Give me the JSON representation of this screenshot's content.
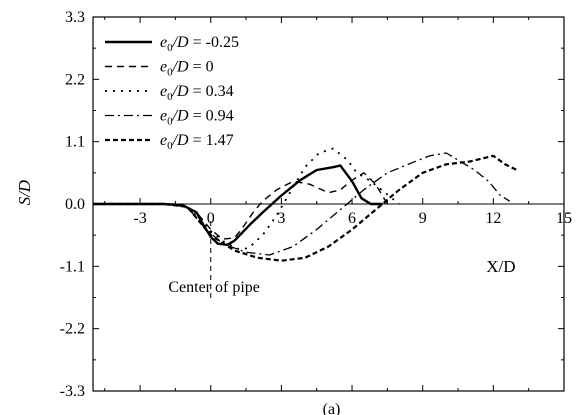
{
  "chart_data": {
    "type": "line",
    "title": "",
    "caption": "(a)",
    "xlabel": "X/D",
    "ylabel": "S/D",
    "xlim": [
      -5,
      15
    ],
    "ylim": [
      -3.3,
      3.3
    ],
    "x_ticks": [
      "-3",
      "0",
      "3",
      "6",
      "9",
      "12",
      "15"
    ],
    "x_tick_values": [
      -3,
      0,
      3,
      6,
      9,
      12,
      15
    ],
    "y_ticks": [
      "3.3",
      "2.2",
      "1.1",
      "0.0",
      "-1.1",
      "-2.2",
      "-3.3"
    ],
    "y_tick_values": [
      3.3,
      2.2,
      1.1,
      0.0,
      -1.1,
      -2.2,
      -3.3
    ],
    "legend_position": "top-left",
    "annotation": {
      "text": "Center of pipe",
      "x": 0
    },
    "series": [
      {
        "name": "e0/D = -0.25",
        "name_parts": {
          "e": "e",
          "sub": "0",
          "rest": "/D = -0.25"
        },
        "style": "solid",
        "x": [
          -5,
          -2,
          -1.2,
          -0.6,
          -0.3,
          0,
          0.3,
          0.7,
          1.0,
          1.3,
          1.7,
          2.2,
          3.0,
          3.8,
          4.5,
          5.2,
          5.5,
          6.0,
          6.4,
          6.8,
          7.3
        ],
        "y": [
          0,
          0,
          -0.02,
          -0.15,
          -0.38,
          -0.58,
          -0.7,
          -0.72,
          -0.65,
          -0.52,
          -0.35,
          -0.15,
          0.15,
          0.42,
          0.6,
          0.65,
          0.68,
          0.4,
          0.1,
          0.0,
          0.0
        ]
      },
      {
        "name": "e0/D = 0",
        "name_parts": {
          "e": "e",
          "sub": "0",
          "rest": "/D = 0"
        },
        "style": "dashed",
        "x": [
          -5,
          -2,
          -1,
          -0.5,
          0,
          0.5,
          1.0,
          1.3,
          1.8,
          2.2,
          2.8,
          3.5,
          4.2,
          5.0,
          5.5,
          6.0,
          6.5,
          7.0,
          7.5
        ],
        "y": [
          0,
          0,
          -0.05,
          -0.2,
          -0.45,
          -0.62,
          -0.6,
          -0.45,
          -0.15,
          0.05,
          0.25,
          0.4,
          0.35,
          0.2,
          0.25,
          0.42,
          0.55,
          0.35,
          0.0
        ]
      },
      {
        "name": "e0/D = 0.34",
        "name_parts": {
          "e": "e",
          "sub": "0",
          "rest": "/D = 0.34"
        },
        "style": "dotted",
        "x": [
          -5,
          -2,
          -1,
          -0.5,
          0,
          0.6,
          1.2,
          1.6,
          2.2,
          2.8,
          3.5,
          4.0,
          4.6,
          5.2,
          5.8,
          6.2,
          6.8,
          7.4,
          8.0
        ],
        "y": [
          0,
          0,
          -0.05,
          -0.25,
          -0.48,
          -0.68,
          -0.8,
          -0.78,
          -0.55,
          -0.2,
          0.3,
          0.65,
          0.9,
          0.98,
          0.78,
          0.55,
          0.4,
          0.2,
          0.0
        ]
      },
      {
        "name": "e0/D = 0.94",
        "name_parts": {
          "e": "e",
          "sub": "0",
          "rest": "/D = 0.94"
        },
        "style": "dashdot",
        "x": [
          -5,
          -2,
          -1,
          -0.3,
          0.5,
          1.5,
          2.5,
          3.5,
          4.5,
          5.5,
          6.5,
          7.5,
          8.5,
          9.3,
          10.0,
          10.6,
          11.2,
          11.8,
          12.3,
          12.7
        ],
        "y": [
          0,
          0,
          -0.05,
          -0.4,
          -0.7,
          -0.85,
          -0.9,
          -0.75,
          -0.45,
          -0.1,
          0.25,
          0.55,
          0.72,
          0.85,
          0.9,
          0.75,
          0.6,
          0.4,
          0.15,
          0.05
        ]
      },
      {
        "name": "e0/D = 1.47",
        "name_parts": {
          "e": "e",
          "sub": "0",
          "rest": "/D = 1.47"
        },
        "style": "shortdash",
        "x": [
          -5,
          -2,
          -1,
          0,
          1,
          2,
          3,
          4,
          5,
          6,
          7,
          8,
          9,
          10,
          11,
          12,
          12.5,
          13
        ],
        "y": [
          0,
          0,
          -0.05,
          -0.55,
          -0.82,
          -0.95,
          -1.0,
          -0.95,
          -0.75,
          -0.45,
          -0.1,
          0.25,
          0.55,
          0.7,
          0.75,
          0.85,
          0.7,
          0.6
        ]
      }
    ]
  }
}
